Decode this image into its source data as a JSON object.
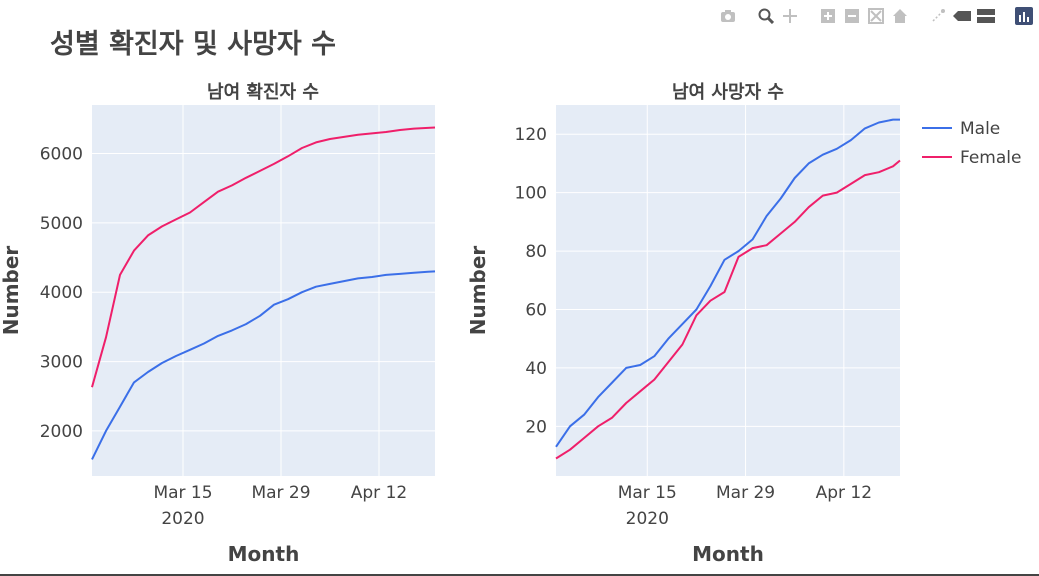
{
  "title": "성별 확진자 및 사망자 수",
  "modebar": {
    "icons": [
      "camera-icon",
      "zoom-icon",
      "pan-icon",
      "zoom-in-icon",
      "zoom-out-icon",
      "autoscale-icon",
      "reset-axes-icon",
      "spike-lines-icon",
      "hover-closest-icon",
      "hover-compare-icon",
      "plotly-logo-icon"
    ]
  },
  "legend": {
    "placement": "top-right",
    "items": [
      {
        "name": "Male",
        "color": "#3b6fe8"
      },
      {
        "name": "Female",
        "color": "#ef1f6a"
      }
    ]
  },
  "colors": {
    "plot_bg": "#e5ecf6",
    "grid": "#ffffff",
    "male": "#3b6fe8",
    "female": "#ef1f6a"
  },
  "chart_data": [
    {
      "type": "line",
      "title": "남여 확진자 수",
      "xlabel": "Month",
      "ylabel": "Number",
      "x_ticks": [
        "Mar 15",
        "Mar 29",
        "Apr 12"
      ],
      "x_tick_dates": [
        "2020-03-15",
        "2020-03-29",
        "2020-04-12"
      ],
      "x_year_label": "2020",
      "xlim": [
        "2020-03-02",
        "2020-04-20"
      ],
      "ylim": [
        1350,
        6700
      ],
      "y_ticks": [
        2000,
        3000,
        4000,
        5000,
        6000
      ],
      "grid": true,
      "x": [
        "2020-03-02",
        "2020-03-04",
        "2020-03-06",
        "2020-03-08",
        "2020-03-10",
        "2020-03-12",
        "2020-03-14",
        "2020-03-16",
        "2020-03-18",
        "2020-03-20",
        "2020-03-22",
        "2020-03-24",
        "2020-03-26",
        "2020-03-28",
        "2020-03-30",
        "2020-04-01",
        "2020-04-03",
        "2020-04-05",
        "2020-04-07",
        "2020-04-09",
        "2020-04-11",
        "2020-04-13",
        "2020-04-15",
        "2020-04-17",
        "2020-04-19",
        "2020-04-20"
      ],
      "series": [
        {
          "name": "Male",
          "color": "#3b6fe8",
          "values": [
            1590,
            2000,
            2350,
            2700,
            2850,
            2980,
            3080,
            3170,
            3260,
            3370,
            3450,
            3540,
            3660,
            3820,
            3900,
            4000,
            4080,
            4120,
            4160,
            4200,
            4220,
            4250,
            4265,
            4280,
            4295,
            4300
          ]
        },
        {
          "name": "Female",
          "color": "#ef1f6a",
          "values": [
            2630,
            3350,
            4250,
            4600,
            4820,
            4950,
            5050,
            5150,
            5300,
            5450,
            5540,
            5650,
            5750,
            5850,
            5960,
            6080,
            6160,
            6210,
            6240,
            6270,
            6290,
            6310,
            6340,
            6360,
            6370,
            6375
          ]
        }
      ]
    },
    {
      "type": "line",
      "title": "남여 사망자 수",
      "xlabel": "Month",
      "ylabel": "Number",
      "x_ticks": [
        "Mar 15",
        "Mar 29",
        "Apr 12"
      ],
      "x_tick_dates": [
        "2020-03-15",
        "2020-03-29",
        "2020-04-12"
      ],
      "x_year_label": "2020",
      "xlim": [
        "2020-03-02",
        "2020-04-20"
      ],
      "ylim": [
        3,
        130
      ],
      "y_ticks": [
        20,
        40,
        60,
        80,
        100,
        120
      ],
      "grid": true,
      "x": [
        "2020-03-02",
        "2020-03-04",
        "2020-03-06",
        "2020-03-08",
        "2020-03-10",
        "2020-03-12",
        "2020-03-14",
        "2020-03-16",
        "2020-03-18",
        "2020-03-20",
        "2020-03-22",
        "2020-03-24",
        "2020-03-26",
        "2020-03-28",
        "2020-03-30",
        "2020-04-01",
        "2020-04-03",
        "2020-04-05",
        "2020-04-07",
        "2020-04-09",
        "2020-04-11",
        "2020-04-13",
        "2020-04-15",
        "2020-04-17",
        "2020-04-19",
        "2020-04-20"
      ],
      "series": [
        {
          "name": "Male",
          "color": "#3b6fe8",
          "values": [
            13,
            20,
            24,
            30,
            35,
            40,
            41,
            44,
            50,
            55,
            60,
            68,
            77,
            80,
            84,
            92,
            98,
            105,
            110,
            113,
            115,
            118,
            122,
            124,
            125,
            125
          ]
        },
        {
          "name": "Female",
          "color": "#ef1f6a",
          "values": [
            9,
            12,
            16,
            20,
            23,
            28,
            32,
            36,
            42,
            48,
            58,
            63,
            66,
            78,
            81,
            82,
            86,
            90,
            95,
            99,
            100,
            103,
            106,
            107,
            109,
            111
          ]
        }
      ]
    }
  ]
}
